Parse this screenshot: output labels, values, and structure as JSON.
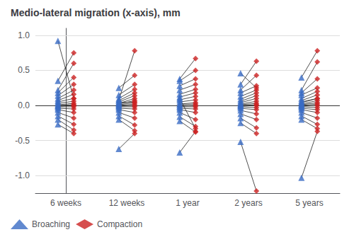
{
  "chart_data": {
    "type": "scatter",
    "title": "Medio-lateral migration (x-axis), mm",
    "categories": [
      "6 weeks",
      "12 weeks",
      "1 year",
      "2 years",
      "5 years"
    ],
    "ylim": [
      -1.25,
      1.1
    ],
    "yticks": [
      {
        "value": -1.0,
        "label": "-1.0"
      },
      -0.5,
      {
        "value": 0.0,
        "label": "0.0"
      },
      0.5,
      {
        "value": 1.0,
        "label": "1.0"
      }
    ],
    "grid": true,
    "legend": "lower left",
    "series": [
      {
        "name": "Broaching",
        "color": "#3A6BC4",
        "marker": "triangle",
        "values": [
          [
            0.35,
            0.08,
            0.38,
            0.3,
            0.4
          ],
          [
            0.22,
            0.25,
            0.35,
            0.22,
            0.22
          ],
          [
            0.18,
            0.15,
            0.28,
            0.18,
            0.18
          ],
          [
            0.14,
            0.1,
            0.22,
            0.13,
            0.15
          ],
          [
            0.1,
            0.07,
            0.16,
            0.09,
            0.1
          ],
          [
            0.07,
            0.05,
            0.12,
            0.06,
            0.07
          ],
          [
            0.05,
            0.03,
            0.08,
            0.04,
            0.04
          ],
          [
            0.03,
            0.02,
            0.05,
            0.02,
            0.02
          ],
          [
            0.01,
            0.01,
            0.02,
            0.01,
            0.01
          ],
          [
            0.0,
            0.0,
            0.01,
            0.0,
            0.0
          ],
          [
            -0.01,
            -0.01,
            -0.01,
            -0.01,
            -0.01
          ],
          [
            -0.02,
            -0.02,
            -0.02,
            -0.02,
            -0.02
          ],
          [
            -0.04,
            -0.04,
            -0.04,
            -0.04,
            -0.04
          ],
          [
            -0.06,
            -0.06,
            -0.06,
            -0.07,
            -0.06
          ],
          [
            -0.1,
            -0.1,
            -0.1,
            -0.12,
            -0.1
          ],
          [
            -0.15,
            -0.15,
            -0.16,
            -0.18,
            -0.15
          ],
          [
            -0.2,
            -0.2,
            -0.22,
            -0.25,
            -0.2
          ],
          [
            -0.27,
            -0.62,
            -0.67,
            -0.52,
            -1.03
          ],
          [
            0.92,
            0.04,
            0.1,
            0.46,
            0.05
          ]
        ]
      },
      {
        "name": "Compaction",
        "color": "#CC2222",
        "marker": "diamond",
        "values": [
          [
            0.75,
            0.78,
            0.67,
            0.63,
            0.78
          ],
          [
            0.6,
            0.43,
            0.5,
            0.43,
            0.62
          ],
          [
            0.4,
            0.3,
            0.38,
            0.28,
            0.38
          ],
          [
            0.3,
            0.23,
            0.3,
            0.22,
            0.25
          ],
          [
            0.22,
            0.18,
            0.23,
            0.18,
            0.2
          ],
          [
            0.16,
            0.14,
            0.18,
            0.14,
            0.15
          ],
          [
            0.1,
            0.1,
            0.13,
            0.1,
            0.1
          ],
          [
            0.06,
            0.07,
            0.08,
            0.06,
            0.07
          ],
          [
            0.03,
            0.04,
            0.04,
            0.03,
            0.04
          ],
          [
            0.01,
            0.02,
            0.02,
            0.01,
            0.02
          ],
          [
            0.0,
            0.0,
            0.0,
            0.0,
            0.0
          ],
          [
            -0.02,
            -0.02,
            -0.02,
            -0.03,
            -0.03
          ],
          [
            -0.05,
            -0.05,
            -0.05,
            -0.06,
            -0.06
          ],
          [
            -0.1,
            -0.1,
            -0.1,
            -0.12,
            -0.1
          ],
          [
            -0.18,
            -0.18,
            -0.2,
            -0.2,
            -0.18
          ],
          [
            -0.27,
            -0.28,
            -0.3,
            -0.32,
            -0.27
          ],
          [
            -0.35,
            -0.36,
            -0.38,
            -0.4,
            -0.33
          ],
          [
            -0.4,
            -0.4,
            -0.37,
            -1.22,
            -0.37
          ],
          [
            0.1,
            0.05,
            -0.33,
            0.25,
            0.1
          ]
        ]
      }
    ]
  }
}
